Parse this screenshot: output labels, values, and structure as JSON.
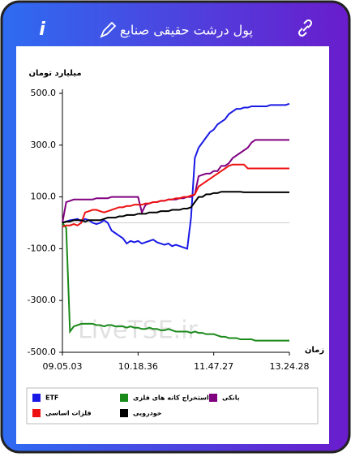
{
  "header": {
    "title": "پول درشت حقیقی صنایع",
    "info_icon": "i"
  },
  "chart_data": {
    "type": "line",
    "ylabel": "میلیارد تومان",
    "xlabel": "زمان",
    "watermark": "LiveTSE.ir",
    "categories": [
      "09.05.03",
      null,
      null,
      null,
      null,
      null,
      null,
      null,
      null,
      null,
      null,
      null,
      null,
      null,
      null,
      null,
      null,
      null,
      null,
      null,
      "10.18.36",
      null,
      null,
      null,
      null,
      null,
      null,
      null,
      null,
      null,
      null,
      null,
      null,
      null,
      null,
      null,
      null,
      null,
      null,
      null,
      "11.47.27",
      null,
      null,
      null,
      null,
      null,
      null,
      null,
      null,
      null,
      null,
      null,
      null,
      null,
      null,
      null,
      null,
      null,
      null,
      null,
      "13.24.28"
    ],
    "ylim": [
      -500,
      500
    ],
    "yticks": [
      {
        "value": 500,
        "label": "500.0"
      },
      {
        "value": 300,
        "label": "300.0"
      },
      {
        "value": 100,
        "label": "100.0"
      },
      {
        "value": -100,
        "label": "-100.0"
      },
      {
        "value": -300,
        "label": "-300.0"
      },
      {
        "value": -500,
        "label": "-500.0"
      }
    ],
    "zero_line": true,
    "series": [
      {
        "name": "ETF",
        "color": "#1a1ae6",
        "values": [
          0,
          5,
          10,
          12,
          15,
          5,
          15,
          10,
          0,
          -5,
          0,
          10,
          0,
          -30,
          -40,
          -50,
          -60,
          -80,
          -70,
          -75,
          -70,
          -80,
          -75,
          -70,
          -65,
          -75,
          -80,
          -85,
          -80,
          -90,
          -85,
          -90,
          -95,
          -100,
          20,
          250,
          290,
          310,
          330,
          350,
          360,
          380,
          390,
          400,
          420,
          430,
          440,
          440,
          445,
          445,
          450,
          450,
          450,
          450,
          450,
          455,
          455,
          455,
          455,
          455,
          460
        ]
      },
      {
        "name": "استخراج کانه های فلزی",
        "color": "#1a8a1a",
        "values": [
          0,
          -20,
          -420,
          -400,
          -395,
          -390,
          -390,
          -390,
          -390,
          -395,
          -395,
          -400,
          -395,
          -395,
          -400,
          -400,
          -400,
          -405,
          -400,
          -405,
          -405,
          -410,
          -410,
          -405,
          -410,
          -410,
          -415,
          -415,
          -410,
          -415,
          -420,
          -420,
          -420,
          -420,
          -425,
          -420,
          -425,
          -425,
          -430,
          -430,
          -430,
          -435,
          -440,
          -440,
          -445,
          -445,
          -445,
          -450,
          -450,
          -450,
          -450,
          -455,
          -455,
          -455,
          -455,
          -455,
          -455,
          -455,
          -455,
          -455,
          -455
        ]
      },
      {
        "name": "بانکی",
        "color": "#800080",
        "values": [
          0,
          80,
          85,
          90,
          90,
          90,
          90,
          90,
          90,
          95,
          95,
          95,
          95,
          100,
          100,
          100,
          100,
          100,
          100,
          100,
          100,
          40,
          70,
          75,
          80,
          80,
          85,
          85,
          90,
          90,
          90,
          95,
          95,
          100,
          100,
          110,
          180,
          185,
          190,
          190,
          200,
          200,
          220,
          220,
          230,
          250,
          260,
          270,
          280,
          290,
          310,
          320,
          320,
          320,
          320,
          320,
          320,
          320,
          320,
          320,
          320
        ]
      },
      {
        "name": "فلزات اساسی",
        "color": "#ee1111",
        "values": [
          -15,
          -10,
          -10,
          -5,
          -10,
          0,
          40,
          45,
          50,
          50,
          45,
          40,
          45,
          50,
          55,
          60,
          60,
          65,
          65,
          70,
          70,
          70,
          75,
          75,
          80,
          80,
          85,
          85,
          90,
          90,
          95,
          95,
          100,
          100,
          105,
          110,
          140,
          150,
          160,
          170,
          180,
          190,
          200,
          210,
          220,
          225,
          225,
          225,
          225,
          210,
          210,
          210,
          210,
          210,
          210,
          210,
          210,
          210,
          210,
          210,
          210
        ]
      },
      {
        "name": "خودرویی",
        "color": "#000000",
        "values": [
          0,
          5,
          5,
          10,
          10,
          10,
          5,
          10,
          10,
          10,
          10,
          15,
          20,
          20,
          20,
          25,
          25,
          30,
          30,
          30,
          35,
          35,
          35,
          40,
          40,
          40,
          45,
          45,
          45,
          50,
          50,
          50,
          55,
          55,
          60,
          80,
          100,
          100,
          110,
          110,
          115,
          115,
          120,
          120,
          120,
          120,
          120,
          120,
          118,
          118,
          118,
          118,
          118,
          118,
          118,
          118,
          118,
          118,
          118,
          118,
          118
        ]
      }
    ]
  }
}
